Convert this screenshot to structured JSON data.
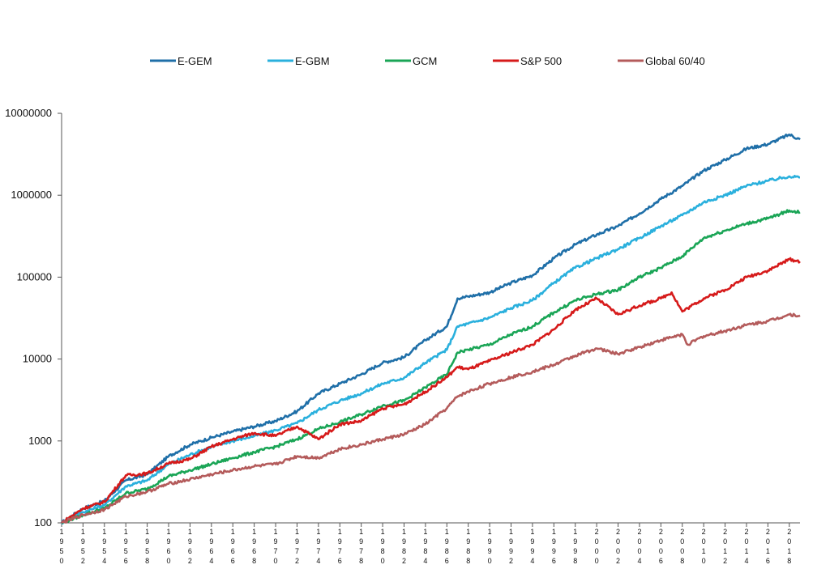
{
  "chart_data": {
    "type": "line",
    "title": "",
    "xlabel": "",
    "ylabel": "",
    "yscale": "log",
    "ylim": [
      100,
      10000000
    ],
    "xlim": [
      1950,
      2019
    ],
    "grid": false,
    "legend_position": "top",
    "y_ticks": [
      {
        "value": 100,
        "label": "100"
      },
      {
        "value": 1000,
        "label": "1000"
      },
      {
        "value": 10000,
        "label": "10000"
      },
      {
        "value": 100000,
        "label": "100000"
      },
      {
        "value": 1000000,
        "label": "1000000"
      },
      {
        "value": 10000000,
        "label": "10000000"
      }
    ],
    "x_ticks": [
      {
        "value": 1950,
        "label": "1950"
      },
      {
        "value": 1952,
        "label": "1952"
      },
      {
        "value": 1954,
        "label": "1954"
      },
      {
        "value": 1956,
        "label": "1956"
      },
      {
        "value": 1958,
        "label": "1958"
      },
      {
        "value": 1960,
        "label": "1960"
      },
      {
        "value": 1962,
        "label": "1962"
      },
      {
        "value": 1964,
        "label": "1964"
      },
      {
        "value": 1966,
        "label": "1966"
      },
      {
        "value": 1968,
        "label": "1968"
      },
      {
        "value": 1970,
        "label": "1970"
      },
      {
        "value": 1972,
        "label": "1972"
      },
      {
        "value": 1974,
        "label": "1974"
      },
      {
        "value": 1976,
        "label": "1976"
      },
      {
        "value": 1978,
        "label": "1978"
      },
      {
        "value": 1980,
        "label": "1980"
      },
      {
        "value": 1982,
        "label": "1982"
      },
      {
        "value": 1984,
        "label": "1984"
      },
      {
        "value": 1986,
        "label": "1986"
      },
      {
        "value": 1988,
        "label": "1988"
      },
      {
        "value": 1990,
        "label": "1990"
      },
      {
        "value": 1992,
        "label": "1992"
      },
      {
        "value": 1994,
        "label": "1994"
      },
      {
        "value": 1996,
        "label": "1996"
      },
      {
        "value": 1998,
        "label": "1998"
      },
      {
        "value": 2000,
        "label": "2000"
      },
      {
        "value": 2002,
        "label": "2002"
      },
      {
        "value": 2004,
        "label": "2004"
      },
      {
        "value": 2006,
        "label": "2006"
      },
      {
        "value": 2008,
        "label": "2008"
      },
      {
        "value": 2010,
        "label": "2010"
      },
      {
        "value": 2012,
        "label": "2012"
      },
      {
        "value": 2014,
        "label": "2014"
      },
      {
        "value": 2016,
        "label": "2016"
      },
      {
        "value": 2018,
        "label": "2018"
      }
    ],
    "series": [
      {
        "name": "E-GEM",
        "color": "#1f6fa8",
        "points": [
          [
            1950,
            100
          ],
          [
            1952,
            150
          ],
          [
            1954,
            185
          ],
          [
            1956,
            330
          ],
          [
            1958,
            390
          ],
          [
            1960,
            650
          ],
          [
            1962,
            900
          ],
          [
            1964,
            1100
          ],
          [
            1966,
            1300
          ],
          [
            1968,
            1500
          ],
          [
            1970,
            1750
          ],
          [
            1972,
            2300
          ],
          [
            1974,
            3800
          ],
          [
            1976,
            5000
          ],
          [
            1978,
            6500
          ],
          [
            1980,
            9000
          ],
          [
            1982,
            10500
          ],
          [
            1984,
            17000
          ],
          [
            1986,
            25000
          ],
          [
            1987,
            55000
          ],
          [
            1988,
            58000
          ],
          [
            1990,
            65000
          ],
          [
            1992,
            85000
          ],
          [
            1994,
            105000
          ],
          [
            1996,
            170000
          ],
          [
            1998,
            250000
          ],
          [
            2000,
            330000
          ],
          [
            2002,
            420000
          ],
          [
            2004,
            600000
          ],
          [
            2006,
            900000
          ],
          [
            2008,
            1300000
          ],
          [
            2010,
            2000000
          ],
          [
            2012,
            2700000
          ],
          [
            2014,
            3700000
          ],
          [
            2016,
            4200000
          ],
          [
            2018,
            5500000
          ],
          [
            2019,
            4800000
          ]
        ]
      },
      {
        "name": "E-GBM",
        "color": "#2ab0dd",
        "points": [
          [
            1950,
            100
          ],
          [
            1952,
            135
          ],
          [
            1954,
            165
          ],
          [
            1956,
            280
          ],
          [
            1958,
            330
          ],
          [
            1960,
            520
          ],
          [
            1962,
            680
          ],
          [
            1964,
            850
          ],
          [
            1966,
            1000
          ],
          [
            1968,
            1150
          ],
          [
            1970,
            1350
          ],
          [
            1972,
            1650
          ],
          [
            1974,
            2400
          ],
          [
            1976,
            3100
          ],
          [
            1978,
            3800
          ],
          [
            1980,
            5000
          ],
          [
            1982,
            5900
          ],
          [
            1984,
            9000
          ],
          [
            1986,
            13000
          ],
          [
            1987,
            25000
          ],
          [
            1988,
            27000
          ],
          [
            1990,
            32000
          ],
          [
            1992,
            42000
          ],
          [
            1994,
            52000
          ],
          [
            1996,
            85000
          ],
          [
            1998,
            130000
          ],
          [
            2000,
            170000
          ],
          [
            2002,
            220000
          ],
          [
            2004,
            300000
          ],
          [
            2006,
            420000
          ],
          [
            2008,
            570000
          ],
          [
            2010,
            820000
          ],
          [
            2012,
            1000000
          ],
          [
            2014,
            1300000
          ],
          [
            2016,
            1500000
          ],
          [
            2018,
            1700000
          ],
          [
            2019,
            1650000
          ]
        ]
      },
      {
        "name": "GCM",
        "color": "#1aa556",
        "points": [
          [
            1950,
            100
          ],
          [
            1952,
            125
          ],
          [
            1954,
            150
          ],
          [
            1956,
            230
          ],
          [
            1958,
            260
          ],
          [
            1960,
            370
          ],
          [
            1962,
            440
          ],
          [
            1964,
            520
          ],
          [
            1966,
            620
          ],
          [
            1968,
            730
          ],
          [
            1970,
            850
          ],
          [
            1972,
            1050
          ],
          [
            1974,
            1400
          ],
          [
            1976,
            1700
          ],
          [
            1978,
            2100
          ],
          [
            1980,
            2700
          ],
          [
            1982,
            3100
          ],
          [
            1984,
            4500
          ],
          [
            1986,
            6500
          ],
          [
            1987,
            12000
          ],
          [
            1988,
            13000
          ],
          [
            1990,
            15000
          ],
          [
            1992,
            20000
          ],
          [
            1994,
            25000
          ],
          [
            1996,
            37000
          ],
          [
            1998,
            52000
          ],
          [
            2000,
            62000
          ],
          [
            2002,
            70000
          ],
          [
            2004,
            100000
          ],
          [
            2006,
            130000
          ],
          [
            2008,
            180000
          ],
          [
            2010,
            300000
          ],
          [
            2012,
            370000
          ],
          [
            2014,
            450000
          ],
          [
            2016,
            520000
          ],
          [
            2018,
            650000
          ],
          [
            2019,
            620000
          ]
        ]
      },
      {
        "name": "S&P 500",
        "color": "#d61a1a",
        "points": [
          [
            1950,
            100
          ],
          [
            1952,
            150
          ],
          [
            1954,
            180
          ],
          [
            1956,
            380
          ],
          [
            1958,
            400
          ],
          [
            1960,
            530
          ],
          [
            1962,
            600
          ],
          [
            1964,
            850
          ],
          [
            1966,
            1050
          ],
          [
            1968,
            1250
          ],
          [
            1970,
            1150
          ],
          [
            1972,
            1500
          ],
          [
            1974,
            1050
          ],
          [
            1976,
            1600
          ],
          [
            1978,
            1750
          ],
          [
            1980,
            2500
          ],
          [
            1982,
            2800
          ],
          [
            1984,
            4000
          ],
          [
            1986,
            6000
          ],
          [
            1987,
            8000
          ],
          [
            1988,
            7500
          ],
          [
            1990,
            9500
          ],
          [
            1992,
            12000
          ],
          [
            1994,
            15000
          ],
          [
            1996,
            23000
          ],
          [
            1998,
            40000
          ],
          [
            2000,
            55000
          ],
          [
            2002,
            35000
          ],
          [
            2004,
            45000
          ],
          [
            2006,
            55000
          ],
          [
            2007,
            65000
          ],
          [
            2008,
            38000
          ],
          [
            2010,
            55000
          ],
          [
            2012,
            70000
          ],
          [
            2014,
            100000
          ],
          [
            2016,
            120000
          ],
          [
            2018,
            165000
          ],
          [
            2019,
            155000
          ]
        ]
      },
      {
        "name": "Global 60/40",
        "color": "#b45b5b",
        "points": [
          [
            1950,
            100
          ],
          [
            1952,
            125
          ],
          [
            1954,
            145
          ],
          [
            1956,
            210
          ],
          [
            1958,
            240
          ],
          [
            1960,
            300
          ],
          [
            1962,
            340
          ],
          [
            1964,
            390
          ],
          [
            1966,
            440
          ],
          [
            1968,
            490
          ],
          [
            1970,
            520
          ],
          [
            1972,
            650
          ],
          [
            1974,
            620
          ],
          [
            1976,
            800
          ],
          [
            1978,
            900
          ],
          [
            1980,
            1050
          ],
          [
            1982,
            1200
          ],
          [
            1984,
            1600
          ],
          [
            1986,
            2500
          ],
          [
            1987,
            3500
          ],
          [
            1988,
            4000
          ],
          [
            1990,
            5000
          ],
          [
            1992,
            6000
          ],
          [
            1994,
            7000
          ],
          [
            1996,
            8500
          ],
          [
            1998,
            11000
          ],
          [
            2000,
            13500
          ],
          [
            2002,
            11500
          ],
          [
            2004,
            14000
          ],
          [
            2006,
            17000
          ],
          [
            2008,
            20000
          ],
          [
            2008.5,
            15000
          ],
          [
            2010,
            19000
          ],
          [
            2012,
            22000
          ],
          [
            2014,
            26000
          ],
          [
            2016,
            29000
          ],
          [
            2018,
            35000
          ],
          [
            2019,
            34000
          ]
        ]
      }
    ]
  }
}
